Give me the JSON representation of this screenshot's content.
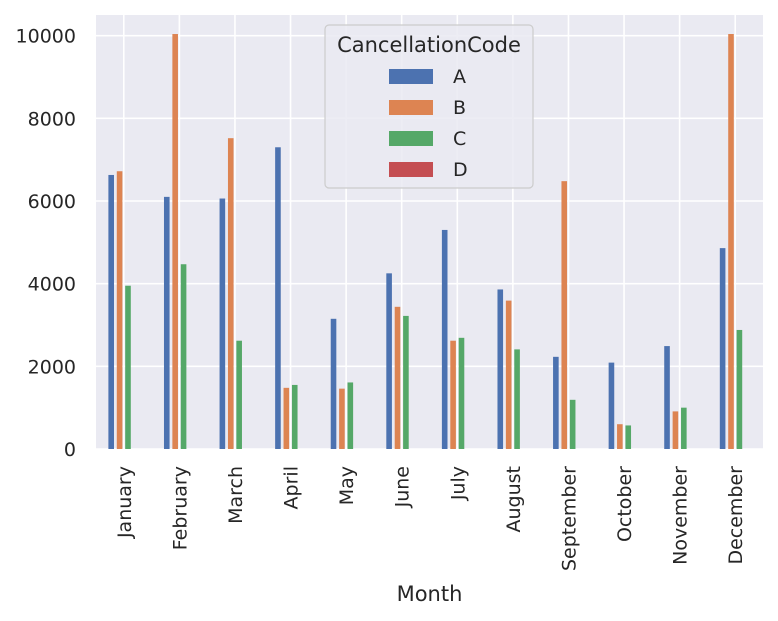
{
  "chart_data": {
    "type": "bar",
    "title": "",
    "xlabel": "Month",
    "ylabel": "",
    "ylim": [
      0,
      10500
    ],
    "yticks": [
      0,
      2000,
      4000,
      6000,
      8000,
      10000
    ],
    "grid": true,
    "legend_placement": "top-center",
    "legend_title": "CancellationCode",
    "categories": [
      "January",
      "February",
      "March",
      "April",
      "May",
      "June",
      "July",
      "August",
      "September",
      "October",
      "November",
      "December"
    ],
    "series": [
      {
        "name": "A",
        "color": "#4c72b0",
        "values": [
          6630,
          6100,
          6060,
          7300,
          3150,
          4250,
          5300,
          3860,
          2230,
          2090,
          2490,
          4860
        ]
      },
      {
        "name": "B",
        "color": "#dd8452",
        "values": [
          6720,
          10040,
          7520,
          1480,
          1460,
          3440,
          2620,
          3590,
          6480,
          600,
          910,
          10040
        ]
      },
      {
        "name": "C",
        "color": "#55a868",
        "values": [
          3950,
          4470,
          2620,
          1550,
          1610,
          3220,
          2690,
          2410,
          1190,
          570,
          1000,
          2880
        ]
      },
      {
        "name": "D",
        "color": "#c44e52",
        "values": [
          0,
          0,
          0,
          0,
          0,
          0,
          0,
          0,
          0,
          0,
          0,
          0
        ]
      }
    ]
  },
  "colors": {
    "plot_background": "#eaeaf2",
    "grid": "#ffffff",
    "text": "#262626"
  }
}
